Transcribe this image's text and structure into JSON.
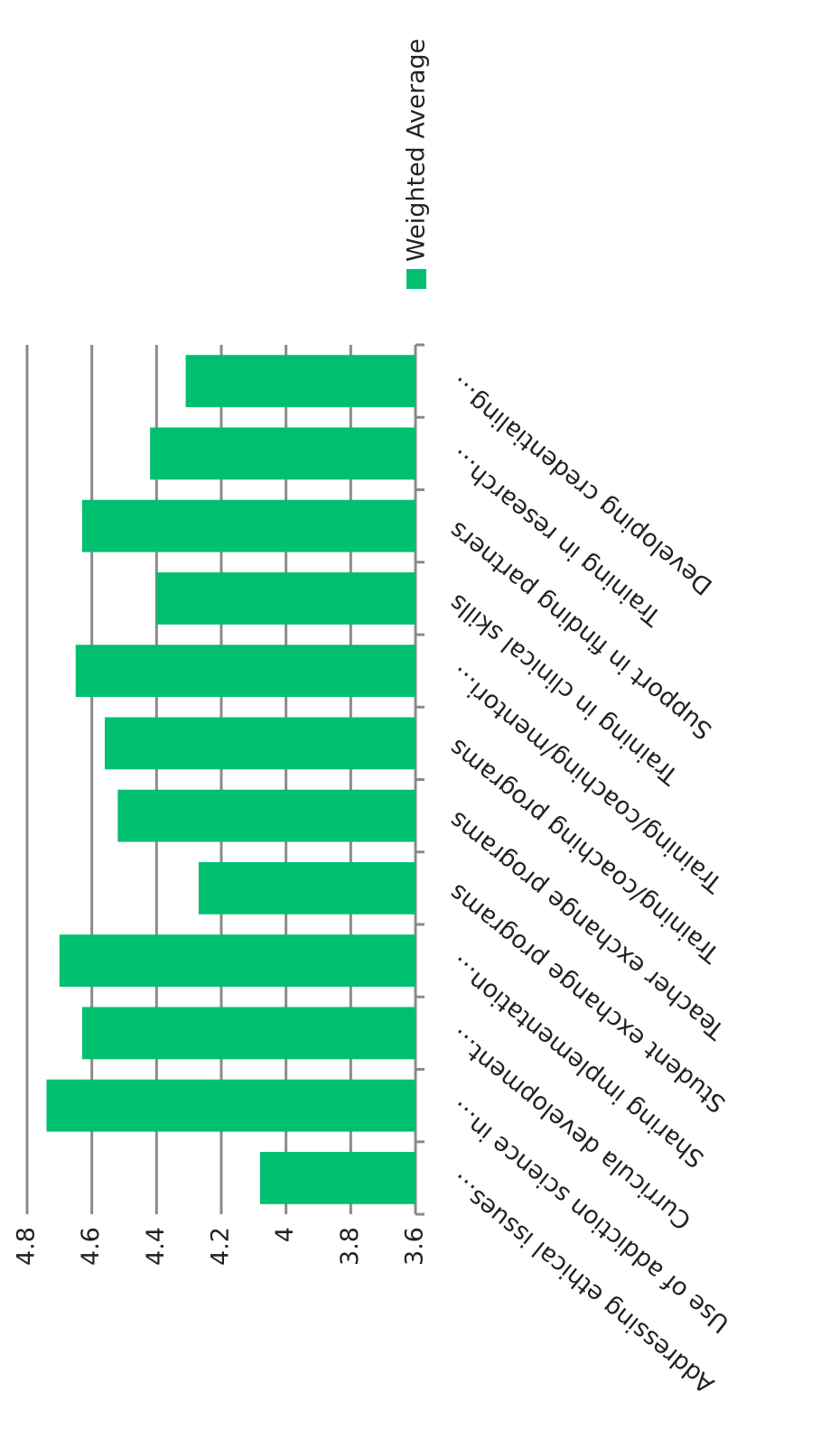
{
  "chart_data": {
    "type": "bar",
    "categories": [
      "Addressing ethical issues…",
      "Use of addiction science in…",
      "Curricula development…",
      "Sharing implementation…",
      "Student exchange programs",
      "Teacher exchange programs",
      "Training/coaching programs",
      "Training/coaching/mentori…",
      "Training in clinical skills",
      "Support in finding partners",
      "Training in research…",
      "Developing credentialing…"
    ],
    "series": [
      {
        "name": "Weighted Average",
        "color": "#00c070",
        "values": [
          4.08,
          4.74,
          4.63,
          4.7,
          4.27,
          4.52,
          4.56,
          4.65,
          4.4,
          4.63,
          4.42,
          4.31
        ]
      }
    ],
    "ylim": [
      3.6,
      4.8
    ],
    "yticks": [
      3.6,
      3.8,
      4,
      4.2,
      4.4,
      4.6,
      4.8
    ],
    "grid": true,
    "legend": "right"
  }
}
